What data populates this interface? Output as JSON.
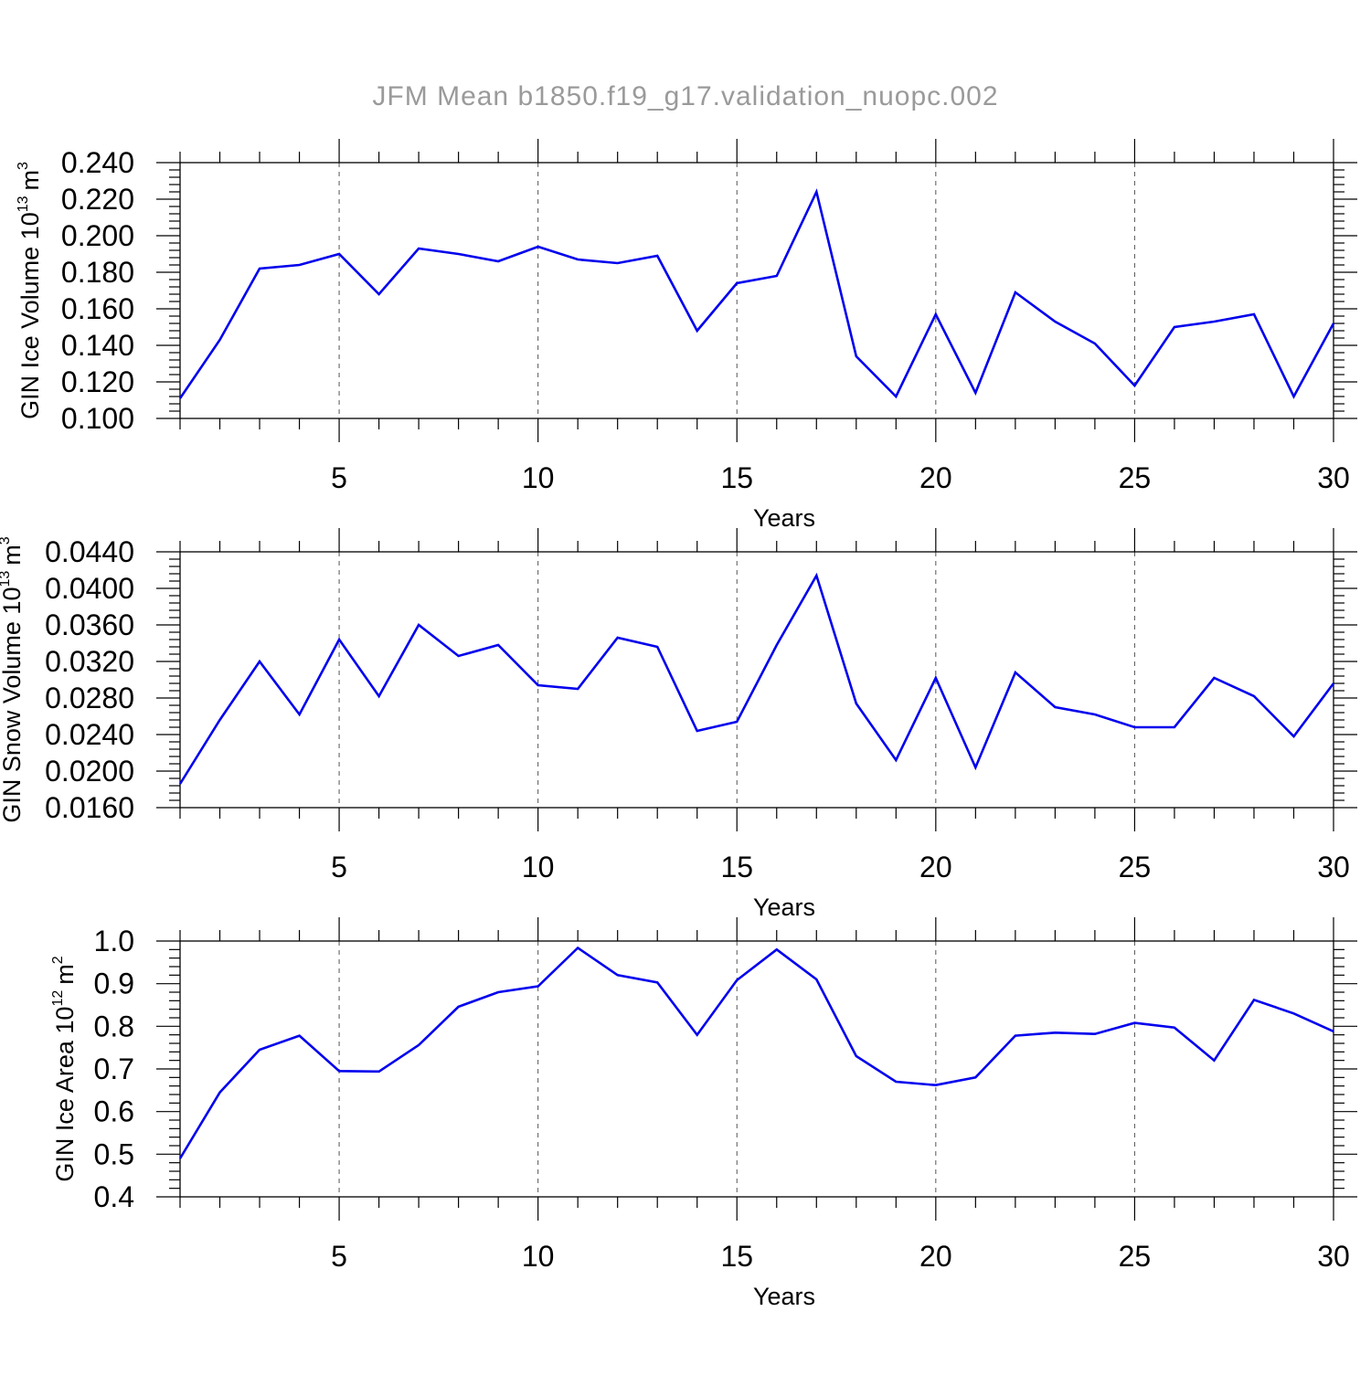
{
  "figure": {
    "title": "JFM Mean b1850.f19_g17.validation_nuopc.002"
  },
  "chart_data": [
    {
      "type": "line",
      "title": "",
      "xlabel": "Years",
      "ylabel": "GIN Ice Volume 10",
      "ylabel_sup": "13",
      "ylabel_unit": "m",
      "ylabel_unit_sup": "3",
      "xlim": [
        1,
        30
      ],
      "ylim": [
        0.1,
        0.24
      ],
      "x_ticks": [
        5,
        10,
        15,
        20,
        25,
        30
      ],
      "x_tick_labels": [
        "5",
        "10",
        "15",
        "20",
        "25",
        "30"
      ],
      "y_ticks": [
        0.1,
        0.12,
        0.14,
        0.16,
        0.18,
        0.2,
        0.22,
        0.24
      ],
      "y_tick_labels": [
        "0.100",
        "0.120",
        "0.140",
        "0.160",
        "0.180",
        "0.200",
        "0.220",
        "0.240"
      ],
      "grid": "vertical dashed at major x ticks",
      "series_color": "#0000ee",
      "x": [
        1,
        2,
        3,
        4,
        5,
        6,
        7,
        8,
        9,
        10,
        11,
        12,
        13,
        14,
        15,
        16,
        17,
        18,
        19,
        20,
        21,
        22,
        23,
        24,
        25,
        26,
        27,
        28,
        29,
        30
      ],
      "y": [
        0.111,
        0.143,
        0.182,
        0.184,
        0.19,
        0.168,
        0.193,
        0.19,
        0.186,
        0.194,
        0.187,
        0.185,
        0.189,
        0.148,
        0.174,
        0.178,
        0.224,
        0.134,
        0.112,
        0.157,
        0.114,
        0.169,
        0.153,
        0.141,
        0.118,
        0.15,
        0.153,
        0.157,
        0.112,
        0.152
      ]
    },
    {
      "type": "line",
      "title": "",
      "xlabel": "Years",
      "ylabel": "GIN Snow Volume 10",
      "ylabel_sup": "13",
      "ylabel_unit": "m",
      "ylabel_unit_sup": "3",
      "xlim": [
        1,
        30
      ],
      "ylim": [
        0.016,
        0.044
      ],
      "x_ticks": [
        5,
        10,
        15,
        20,
        25,
        30
      ],
      "x_tick_labels": [
        "5",
        "10",
        "15",
        "20",
        "25",
        "30"
      ],
      "y_ticks": [
        0.016,
        0.02,
        0.024,
        0.028,
        0.032,
        0.036,
        0.04,
        0.044
      ],
      "y_tick_labels": [
        "0.0160",
        "0.0200",
        "0.0240",
        "0.0280",
        "0.0320",
        "0.0360",
        "0.0400",
        "0.0440"
      ],
      "grid": "vertical dashed at major x ticks",
      "series_color": "#0000ee",
      "x": [
        1,
        2,
        3,
        4,
        5,
        6,
        7,
        8,
        9,
        10,
        11,
        12,
        13,
        14,
        15,
        16,
        17,
        18,
        19,
        20,
        21,
        22,
        23,
        24,
        25,
        26,
        27,
        28,
        29,
        30
      ],
      "y": [
        0.0186,
        0.0256,
        0.032,
        0.0262,
        0.0344,
        0.0282,
        0.036,
        0.0326,
        0.0338,
        0.0294,
        0.029,
        0.0346,
        0.0336,
        0.0244,
        0.0254,
        0.0338,
        0.0414,
        0.0274,
        0.0212,
        0.0302,
        0.0204,
        0.0308,
        0.027,
        0.0262,
        0.0248,
        0.0248,
        0.0302,
        0.0282,
        0.0238,
        0.0296
      ]
    },
    {
      "type": "line",
      "title": "",
      "xlabel": "Years",
      "ylabel": "GIN Ice Area 10",
      "ylabel_sup": "12",
      "ylabel_unit": "m",
      "ylabel_unit_sup": "2",
      "xlim": [
        1,
        30
      ],
      "ylim": [
        0.4,
        1.0
      ],
      "x_ticks": [
        5,
        10,
        15,
        20,
        25,
        30
      ],
      "x_tick_labels": [
        "5",
        "10",
        "15",
        "20",
        "25",
        "30"
      ],
      "y_ticks": [
        0.4,
        0.5,
        0.6,
        0.7,
        0.8,
        0.9,
        1.0
      ],
      "y_tick_labels": [
        "0.4",
        "0.5",
        "0.6",
        "0.7",
        "0.8",
        "0.9",
        "1.0"
      ],
      "grid": "vertical dashed at major x ticks",
      "series_color": "#0000ee",
      "x": [
        1,
        2,
        3,
        4,
        5,
        6,
        7,
        8,
        9,
        10,
        11,
        12,
        13,
        14,
        15,
        16,
        17,
        18,
        19,
        20,
        21,
        22,
        23,
        24,
        25,
        26,
        27,
        28,
        29,
        30
      ],
      "y": [
        0.49,
        0.645,
        0.745,
        0.778,
        0.695,
        0.694,
        0.756,
        0.846,
        0.88,
        0.894,
        0.984,
        0.92,
        0.903,
        0.78,
        0.908,
        0.98,
        0.91,
        0.73,
        0.67,
        0.662,
        0.68,
        0.778,
        0.785,
        0.782,
        0.808,
        0.797,
        0.72,
        0.862,
        0.83,
        0.788
      ]
    }
  ]
}
